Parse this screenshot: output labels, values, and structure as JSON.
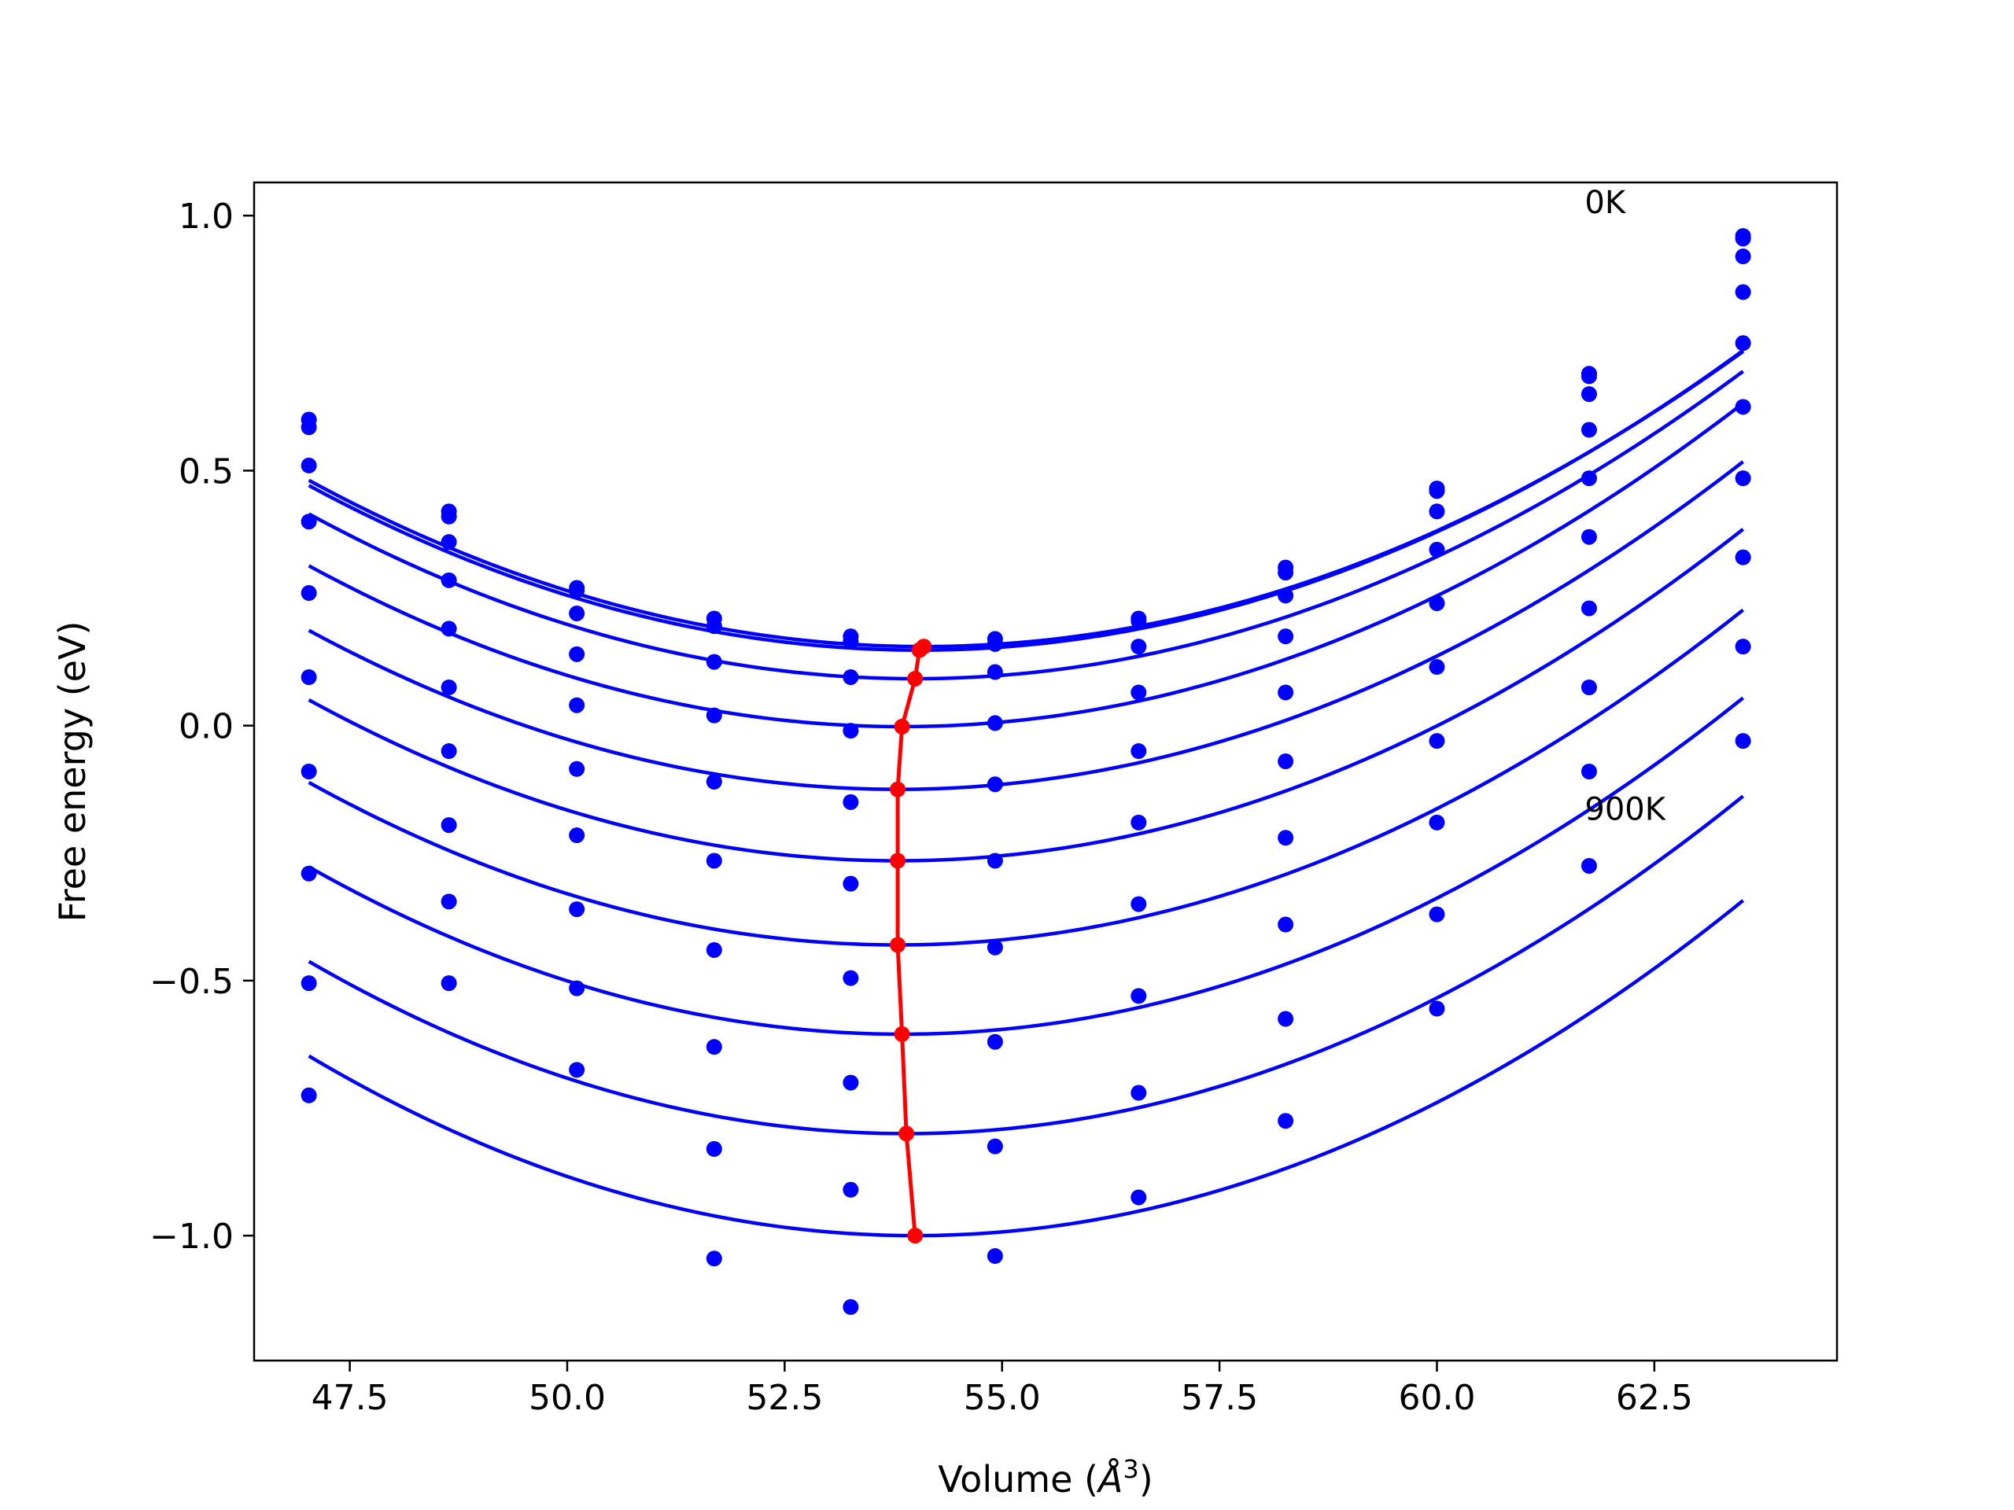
{
  "chart_data": {
    "type": "line",
    "title": "",
    "xlabel": "Volume (",
    "xlabel_symbol": "Å",
    "xlabel_exponent": "3",
    "xlabel_close": ")",
    "ylabel": "Free energy (eV)",
    "xlim": [
      46.4,
      64.6
    ],
    "ylim": [
      -1.245,
      1.065
    ],
    "xticks": [
      {
        "value": 47.5,
        "label": "47.5"
      },
      {
        "value": 50.0,
        "label": "50.0"
      },
      {
        "value": 52.5,
        "label": "52.5"
      },
      {
        "value": 55.0,
        "label": "55.0"
      },
      {
        "value": 57.5,
        "label": "57.5"
      },
      {
        "value": 60.0,
        "label": "60.0"
      },
      {
        "value": 62.5,
        "label": "62.5"
      }
    ],
    "yticks": [
      {
        "value": 1.0,
        "label": "1.0"
      },
      {
        "value": 0.5,
        "label": "0.5"
      },
      {
        "value": 0.0,
        "label": "0.0"
      },
      {
        "value": -0.5,
        "label": "−0.5"
      },
      {
        "value": -1.0,
        "label": "−1.0"
      }
    ],
    "grid": false,
    "colors": {
      "fit": "#0000ff",
      "points": "#0000ff",
      "minimum_path": "#ff0000",
      "axes": "#000000"
    },
    "annotations": [
      {
        "text": "0K",
        "x": 61.7,
        "y": 1.005
      },
      {
        "text": "900K",
        "x": 61.7,
        "y": -0.185
      }
    ],
    "volumes": [
      47.03,
      48.64,
      50.11,
      51.69,
      53.26,
      54.92,
      56.57,
      58.26,
      60.0,
      61.75,
      63.52
    ],
    "fit_x_range": [
      47.03,
      63.52
    ],
    "series": [
      {
        "V0": 54.1,
        "E0": 0.155,
        "B": 0.00652,
        "points": [
          0.6,
          0.42,
          0.27,
          0.21,
          0.175,
          0.17,
          0.21,
          0.31,
          0.465,
          0.69,
          0.96
        ]
      },
      {
        "V0": 54.05,
        "E0": 0.148,
        "B": 0.00655,
        "points": [
          0.585,
          0.41,
          0.265,
          0.195,
          0.165,
          0.16,
          0.205,
          0.3,
          0.46,
          0.685,
          0.955
        ]
      },
      {
        "V0": 54.0,
        "E0": 0.092,
        "B": 0.00665,
        "points": [
          0.51,
          0.36,
          0.22,
          0.125,
          0.095,
          0.105,
          0.155,
          0.255,
          0.42,
          0.65,
          0.92
        ]
      },
      {
        "V0": 53.85,
        "E0": -0.002,
        "B": 0.00678,
        "points": [
          0.4,
          0.285,
          0.14,
          0.02,
          -0.01,
          0.005,
          0.065,
          0.175,
          0.345,
          0.58,
          0.85
        ]
      },
      {
        "V0": 53.8,
        "E0": -0.125,
        "B": 0.0068,
        "points": [
          0.26,
          0.19,
          0.04,
          -0.11,
          -0.15,
          -0.115,
          -0.05,
          0.065,
          0.24,
          0.485,
          0.75
        ]
      },
      {
        "V0": 53.8,
        "E0": -0.265,
        "B": 0.00688,
        "points": [
          0.095,
          0.075,
          -0.085,
          -0.265,
          -0.31,
          -0.265,
          -0.19,
          -0.07,
          0.115,
          0.37,
          0.625
        ]
      },
      {
        "V0": 53.8,
        "E0": -0.43,
        "B": 0.00695,
        "points": [
          -0.09,
          -0.05,
          -0.215,
          -0.44,
          -0.495,
          -0.435,
          -0.35,
          -0.22,
          -0.03,
          0.23,
          0.485
        ]
      },
      {
        "V0": 53.85,
        "E0": -0.605,
        "B": 0.00705,
        "points": [
          -0.29,
          -0.195,
          -0.36,
          -0.63,
          -0.7,
          -0.62,
          -0.53,
          -0.39,
          -0.19,
          0.075,
          0.33
        ]
      },
      {
        "V0": 53.9,
        "E0": -0.8,
        "B": 0.00715,
        "points": [
          -0.505,
          -0.345,
          -0.515,
          -0.83,
          -0.91,
          -0.825,
          -0.72,
          -0.575,
          -0.37,
          -0.09,
          0.155
        ]
      },
      {
        "V0": 54.0,
        "E0": -1.0,
        "B": 0.00725,
        "points": [
          -0.725,
          -0.505,
          -0.675,
          -1.045,
          -1.14,
          -1.04,
          -0.925,
          -0.775,
          -0.555,
          -0.275,
          -0.03
        ]
      }
    ]
  }
}
